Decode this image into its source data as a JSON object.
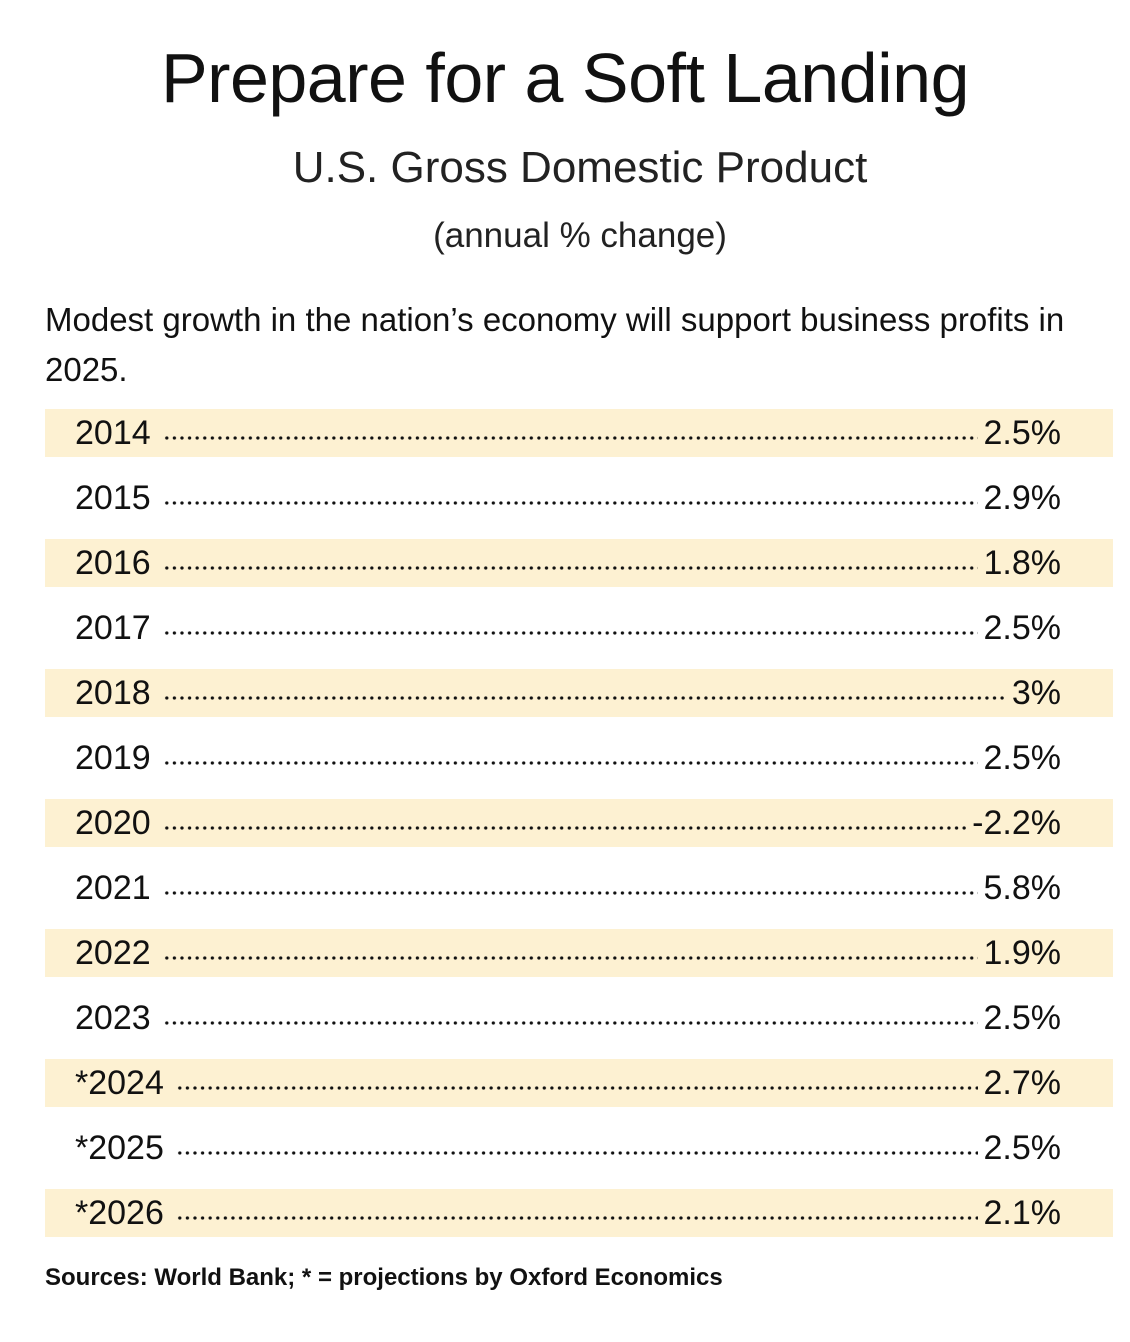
{
  "chart_data": {
    "type": "table",
    "title": "Prepare for a Soft Landing",
    "subtitle": "U.S. Gross Domestic Product",
    "unit": "(annual % change)",
    "description": "Modest growth in the nation’s economy will support business profits in 2025.",
    "rows": [
      {
        "year": "2014",
        "value": "2.5%"
      },
      {
        "year": "2015",
        "value": "2.9%"
      },
      {
        "year": "2016",
        "value": "1.8%"
      },
      {
        "year": "2017",
        "value": "2.5%"
      },
      {
        "year": "2018",
        "value": "3%"
      },
      {
        "year": "2019",
        "value": "2.5%"
      },
      {
        "year": "2020",
        "value": "-2.2%"
      },
      {
        "year": "2021",
        "value": "5.8%"
      },
      {
        "year": "2022",
        "value": "1.9%"
      },
      {
        "year": "2023",
        "value": "2.5%"
      },
      {
        "year": "*2024",
        "value": "2.7%"
      },
      {
        "year": "*2025",
        "value": "2.5%"
      },
      {
        "year": "*2026",
        "value": "2.1%"
      }
    ],
    "source": "Sources: World Bank; * = projections by Oxford Economics",
    "colors": {
      "band": "#fdf1d2",
      "text": "#111111"
    }
  }
}
